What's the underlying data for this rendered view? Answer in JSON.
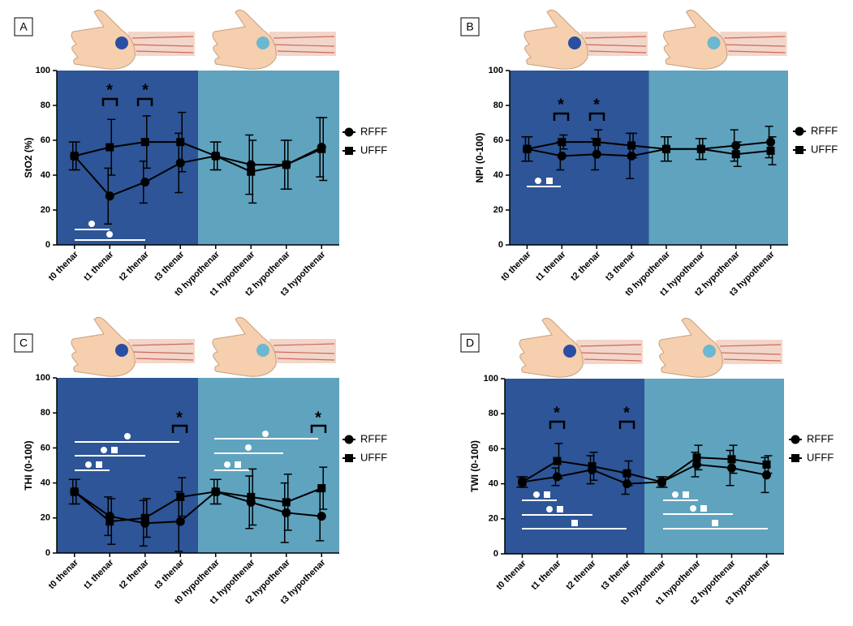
{
  "chart_data": [
    {
      "type": "line",
      "panel": "A",
      "y_label": "StO2 (%)",
      "categories": [
        "t0 thenar",
        "t1 thenar",
        "t2 thenar",
        "t3 thenar",
        "t0 hypothenar",
        "t1 hypothenar",
        "t2 hypothenar",
        "t3 hypothenar"
      ],
      "series": [
        {
          "name": "RFFF",
          "color": "#000000",
          "marker": "circle",
          "values": [
            51,
            28,
            36,
            47,
            51,
            46,
            46,
            56
          ],
          "errors": [
            8,
            16,
            12,
            17,
            8,
            17,
            14,
            17
          ]
        },
        {
          "name": "UFFF",
          "color": "#000000",
          "marker": "square",
          "values": [
            51,
            56,
            59,
            59,
            51,
            42,
            46,
            55
          ],
          "errors": [
            8,
            16,
            15,
            17,
            8,
            18,
            14,
            18
          ]
        }
      ],
      "ylim": [
        0,
        100
      ],
      "yticks": [
        0,
        20,
        40,
        60,
        80,
        100
      ],
      "annotations": [
        "*",
        "*"
      ]
    },
    {
      "type": "line",
      "panel": "B",
      "y_label": "NPI (0-100)",
      "categories": [
        "t0 thenar",
        "t1 thenar",
        "t2 thenar",
        "t3 thenar",
        "t0 hypothenar",
        "t1 hypothenar",
        "t2 hypothenar",
        "t3 hypothenar"
      ],
      "series": [
        {
          "name": "RFFF",
          "color": "#000000",
          "marker": "circle",
          "values": [
            55,
            51,
            52,
            51,
            55,
            55,
            57,
            59
          ],
          "errors": [
            7,
            8,
            9,
            13,
            7,
            6,
            9,
            9
          ]
        },
        {
          "name": "UFFF",
          "color": "#000000",
          "marker": "square",
          "values": [
            55,
            59,
            59,
            57,
            55,
            55,
            52,
            54
          ],
          "errors": [
            7,
            4,
            7,
            7,
            7,
            6,
            7,
            8
          ]
        }
      ],
      "ylim": [
        0,
        100
      ],
      "yticks": [
        0,
        20,
        40,
        60,
        80,
        100
      ],
      "annotations": [
        "*",
        "*"
      ]
    },
    {
      "type": "line",
      "panel": "C",
      "y_label": "THI (0-100)",
      "categories": [
        "t0 thenar",
        "t1 thenar",
        "t2 thenar",
        "t3 thenar",
        "t0 hypothenar",
        "t1 hypothenar",
        "t2 hypothenar",
        "t3 hypothenar"
      ],
      "series": [
        {
          "name": "RFFF",
          "color": "#000000",
          "marker": "circle",
          "values": [
            35,
            21,
            17,
            18,
            35,
            29,
            23,
            21
          ],
          "errors": [
            7,
            11,
            13,
            17,
            7,
            15,
            17,
            14
          ]
        },
        {
          "name": "UFFF",
          "color": "#000000",
          "marker": "square",
          "values": [
            35,
            18,
            20,
            32,
            35,
            32,
            29,
            37
          ],
          "errors": [
            7,
            13,
            11,
            11,
            7,
            16,
            16,
            12
          ]
        }
      ],
      "ylim": [
        0,
        100
      ],
      "yticks": [
        0,
        20,
        40,
        60,
        80,
        100
      ],
      "annotations": [
        "*",
        "*"
      ]
    },
    {
      "type": "line",
      "panel": "D",
      "y_label": "TWI (0-100)",
      "categories": [
        "t0 thenar",
        "t1 thenar",
        "t2 thenar",
        "t3 thenar",
        "t0 hypothenar",
        "t1 hypothenar",
        "t2 hypothenar",
        "t3 hypothenar"
      ],
      "series": [
        {
          "name": "RFFF",
          "color": "#000000",
          "marker": "circle",
          "values": [
            41,
            44,
            48,
            40,
            41,
            51,
            49,
            45
          ],
          "errors": [
            3,
            5,
            8,
            6,
            3,
            7,
            10,
            10
          ]
        },
        {
          "name": "UFFF",
          "color": "#000000",
          "marker": "square",
          "values": [
            41,
            53,
            50,
            46,
            41,
            55,
            54,
            51
          ],
          "errors": [
            3,
            10,
            8,
            7,
            3,
            7,
            8,
            5
          ]
        }
      ],
      "ylim": [
        0,
        100
      ],
      "yticks": [
        0,
        20,
        40,
        60,
        80,
        100
      ],
      "annotations": [
        "*",
        "*"
      ]
    }
  ]
}
